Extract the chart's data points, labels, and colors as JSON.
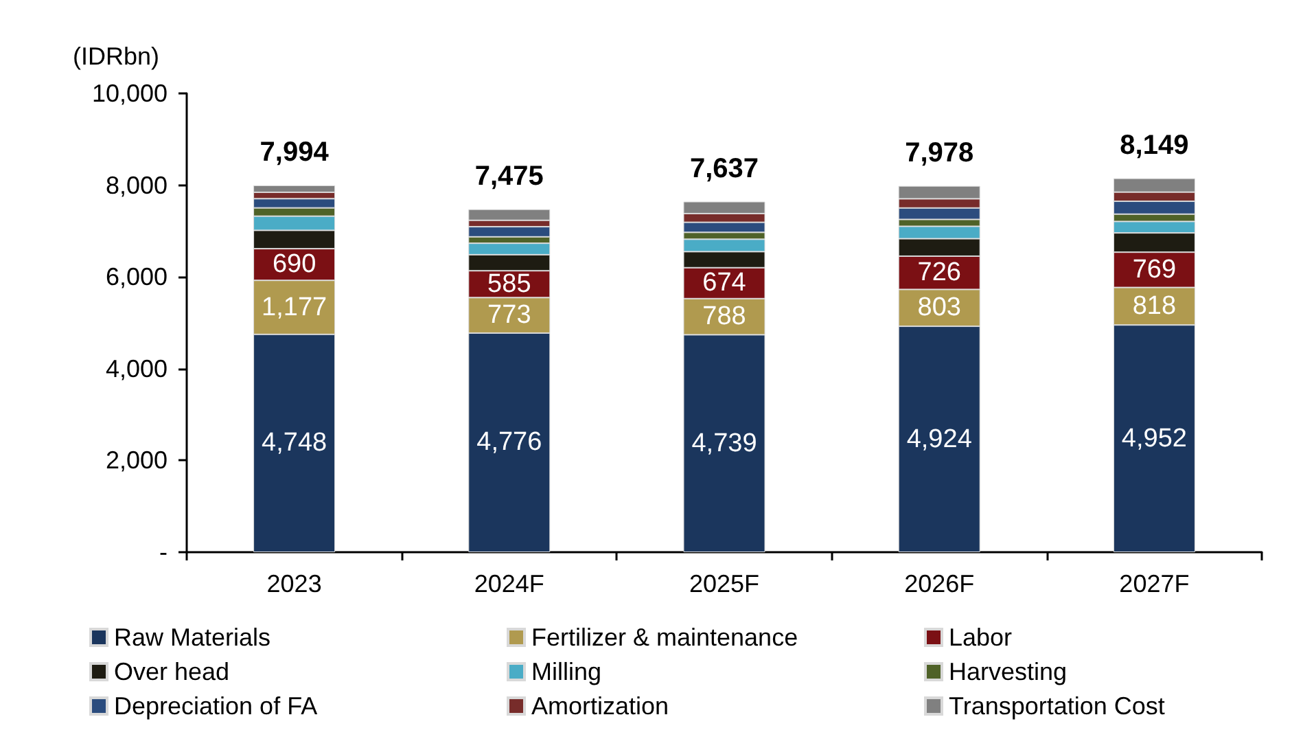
{
  "chart_data": {
    "type": "bar",
    "stacked": true,
    "ylabel": "(IDRbn)",
    "categories": [
      "2023",
      "2024F",
      "2025F",
      "2026F",
      "2027F"
    ],
    "ylim": [
      0,
      10000
    ],
    "yticks": [
      {
        "value": 0,
        "label": "-"
      },
      {
        "value": 2000,
        "label": "2,000"
      },
      {
        "value": 4000,
        "label": "4,000"
      },
      {
        "value": 6000,
        "label": "6,000"
      },
      {
        "value": 8000,
        "label": "8,000"
      },
      {
        "value": 10000,
        "label": "10,000"
      }
    ],
    "grid": false,
    "legend": "bottom",
    "series": [
      {
        "name": "Raw Materials",
        "color": "#1b365d",
        "values": [
          4748,
          4776,
          4739,
          4924,
          4952
        ],
        "value_labels": [
          "4,748",
          "4,776",
          "4,739",
          "4,924",
          "4,952"
        ]
      },
      {
        "name": "Fertilizer & maintenance",
        "color": "#b09a4f",
        "values": [
          1177,
          773,
          788,
          803,
          818
        ],
        "value_labels": [
          "1,177",
          "773",
          "788",
          "803",
          "818"
        ]
      },
      {
        "name": "Labor",
        "color": "#7b1014",
        "values": [
          690,
          585,
          674,
          726,
          769
        ],
        "value_labels": [
          "690",
          "585",
          "674",
          "726",
          "769"
        ]
      },
      {
        "name": "Over head",
        "color": "#1e1c12",
        "values": [
          400,
          350,
          350,
          380,
          420
        ]
      },
      {
        "name": "Milling",
        "color": "#4aacc6",
        "values": [
          310,
          250,
          270,
          270,
          250
        ]
      },
      {
        "name": "Harvesting",
        "color": "#4f6228",
        "values": [
          180,
          140,
          150,
          150,
          160
        ]
      },
      {
        "name": "Depreciation of FA",
        "color": "#2b4c7e",
        "values": [
          200,
          220,
          220,
          250,
          280
        ]
      },
      {
        "name": "Amortization",
        "color": "#772c2a",
        "values": [
          140,
          140,
          190,
          200,
          200
        ]
      },
      {
        "name": "Transportation Cost",
        "color": "#808080",
        "values": [
          150,
          240,
          260,
          280,
          300
        ]
      }
    ],
    "totals": [
      "7,994",
      "7,475",
      "7,637",
      "7,978",
      "8,149"
    ]
  }
}
